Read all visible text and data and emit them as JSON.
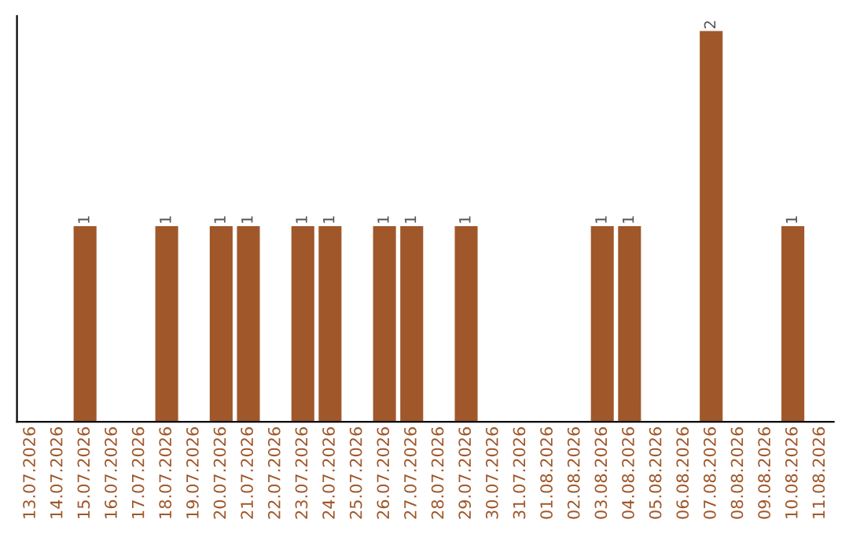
{
  "chart_data": {
    "type": "bar",
    "categories": [
      "13.07.2026",
      "14.07.2026",
      "15.07.2026",
      "16.07.2026",
      "17.07.2026",
      "18.07.2026",
      "19.07.2026",
      "20.07.2026",
      "21.07.2026",
      "22.07.2026",
      "23.07.2026",
      "24.07.2026",
      "25.07.2026",
      "26.07.2026",
      "27.07.2026",
      "28.07.2026",
      "29.07.2026",
      "30.07.2026",
      "31.07.2026",
      "01.08.2026",
      "02.08.2026",
      "03.08.2026",
      "04.08.2026",
      "05.08.2026",
      "06.08.2026",
      "07.08.2026",
      "08.08.2026",
      "09.08.2026",
      "10.08.2026",
      "11.08.2026"
    ],
    "values": [
      0,
      0,
      1,
      0,
      0,
      1,
      0,
      1,
      1,
      0,
      1,
      1,
      0,
      1,
      1,
      0,
      1,
      0,
      0,
      0,
      0,
      1,
      1,
      0,
      0,
      2,
      0,
      0,
      1,
      0
    ],
    "value_labels": [
      null,
      null,
      "1",
      null,
      null,
      "1",
      null,
      "1",
      "1",
      null,
      "1",
      "1",
      null,
      "1",
      "1",
      null,
      "1",
      null,
      null,
      null,
      null,
      "1",
      "1",
      null,
      null,
      "2",
      null,
      null,
      "1",
      null
    ],
    "color": "#a0572a",
    "ylim": [
      0,
      2.08
    ],
    "tick_labels": "x",
    "grid": false,
    "legend": false
  }
}
